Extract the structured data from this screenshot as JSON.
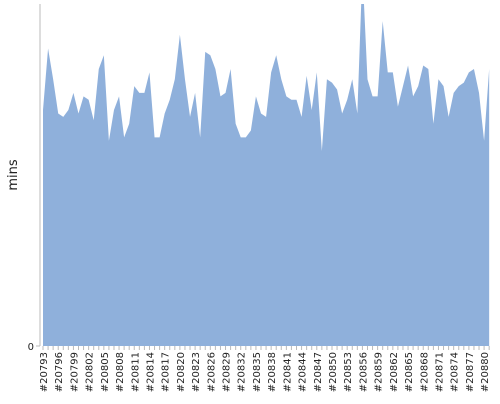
{
  "chart_data": {
    "type": "area",
    "y_label": "mins",
    "color": "#8fb0db",
    "categories": [
      "#20793",
      null,
      null,
      "#20796",
      null,
      null,
      "#20799",
      null,
      null,
      "#20802",
      null,
      null,
      "#20805",
      null,
      null,
      "#20808",
      null,
      null,
      "#20811",
      null,
      null,
      "#20814",
      null,
      null,
      "#20817",
      null,
      null,
      "#20820",
      null,
      null,
      "#20823",
      null,
      null,
      "#20826",
      null,
      null,
      "#20829",
      null,
      null,
      "#20832",
      null,
      null,
      "#20835",
      null,
      null,
      "#20838",
      null,
      null,
      "#20841",
      null,
      null,
      "#20844",
      null,
      null,
      "#20847",
      null,
      null,
      "#20850",
      null,
      null,
      "#20853",
      null,
      null,
      "#20856",
      null,
      null,
      "#20859",
      null,
      null,
      "#20862",
      null,
      null,
      "#20865",
      null,
      null,
      "#20868",
      null,
      null,
      "#20871",
      null,
      null,
      "#20874",
      null,
      null,
      "#20877",
      null,
      null,
      "#20880",
      null
    ],
    "values": [
      69,
      87,
      78,
      68,
      67,
      69,
      74,
      68,
      73,
      72,
      66,
      81,
      85,
      60,
      69,
      73,
      61,
      65,
      76,
      74,
      74,
      80,
      61,
      61,
      68,
      72,
      78,
      91,
      78,
      67,
      74,
      61,
      86,
      85,
      81,
      73,
      74,
      81,
      65,
      61,
      61,
      63,
      73,
      68,
      67,
      80,
      85,
      78,
      73,
      72,
      72,
      67,
      79,
      69,
      80,
      57,
      78,
      77,
      75,
      68,
      72,
      78,
      68,
      110,
      78,
      73,
      73,
      95,
      80,
      80,
      70,
      76,
      82,
      73,
      76,
      82,
      81,
      65,
      78,
      76,
      67,
      74,
      76,
      77,
      80,
      81,
      74,
      60,
      81
    ],
    "ylim": [
      0,
      100
    ],
    "yticks": [
      0
    ]
  }
}
